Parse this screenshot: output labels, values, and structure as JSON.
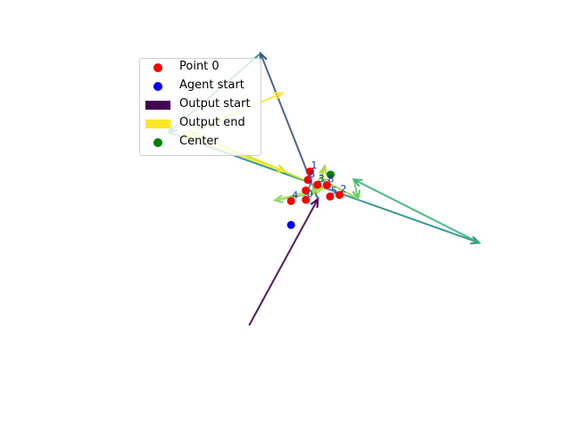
{
  "chart_data": {
    "type": "scatter",
    "title": "",
    "xlabel": "",
    "ylabel": "",
    "grid": false,
    "axes_visible": false,
    "xlim": [
      -4.2,
      4.2
    ],
    "ylim": [
      -4.0,
      4.0
    ],
    "legend_placement": "upper-left",
    "legend": [
      {
        "label": "Point 0",
        "marker": "dot",
        "color": "#ff0000"
      },
      {
        "label": "Agent start",
        "marker": "dot",
        "color": "#0000ff"
      },
      {
        "label": "Output start",
        "marker": "rect",
        "color": "#440154"
      },
      {
        "label": "Output end",
        "marker": "rect",
        "color": "#fde725"
      },
      {
        "label": "Center",
        "marker": "dot",
        "color": "#008000"
      }
    ],
    "points": [
      {
        "label": "0",
        "x": 0.25,
        "y": 0.35
      },
      {
        "label": "1",
        "x": 0.33,
        "y": 1.05
      },
      {
        "label": "2",
        "x": 0.89,
        "y": 0.47
      },
      {
        "label": "3",
        "x": 0.47,
        "y": 0.72
      },
      {
        "label": "4",
        "x": -0.03,
        "y": 0.32
      },
      {
        "label": "5",
        "x": 0.71,
        "y": 0.43
      },
      {
        "label": "6",
        "x": 0.29,
        "y": 0.84
      },
      {
        "label": "7",
        "x": 0.25,
        "y": 0.58
      },
      {
        "label": "8",
        "x": 0.65,
        "y": 0.71
      }
    ],
    "agent_start": {
      "x": -0.03,
      "y": -0.27
    },
    "center": {
      "x": 0.72,
      "y": 0.97
    },
    "path": [
      {
        "x": -0.82,
        "y": -2.73
      },
      {
        "x": 0.48,
        "y": 0.37
      },
      {
        "x": -0.61,
        "y": 3.96
      },
      {
        "x": -2.35,
        "y": 2.01
      },
      {
        "x": 3.54,
        "y": -0.71
      },
      {
        "x": 1.16,
        "y": 0.85
      },
      {
        "x": 1.24,
        "y": 0.38
      },
      {
        "x": 0.55,
        "y": 0.85
      },
      {
        "x": 0.61,
        "y": 1.18
      },
      {
        "x": 0.39,
        "y": 0.5
      },
      {
        "x": -0.34,
        "y": 0.34
      },
      {
        "x": 0.58,
        "y": 0.64
      },
      {
        "x": -1.92,
        "y": 2.0
      },
      {
        "x": -0.15,
        "y": 1.05
      },
      {
        "x": -2.1,
        "y": 1.93
      },
      {
        "x": -0.2,
        "y": 2.98
      }
    ],
    "segment_colors": [
      "#440154",
      "#3b528b",
      "#26818e",
      "#21908d",
      "#35b779",
      "#5ec962",
      "#90d743",
      "#b5de2b",
      "#8fd86e",
      "#7fd46c",
      "#a6e04a",
      "#c2df23",
      "#d5e21a",
      "#fde725",
      "#fde725"
    ]
  }
}
